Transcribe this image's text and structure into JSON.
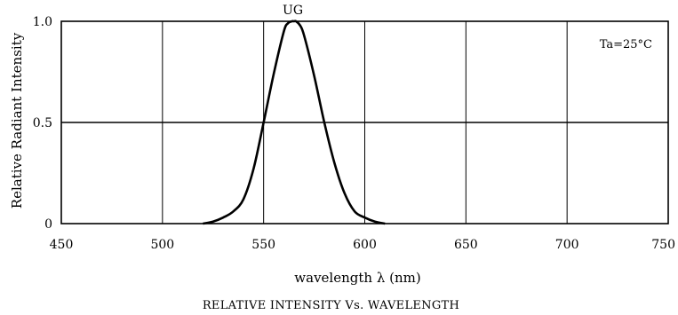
{
  "chart_data": {
    "type": "line",
    "title": "RELATIVE INTENSITY Vs. WAVELENGTH",
    "xlabel": "wavelength λ (nm)",
    "ylabel": "Relative Radiant Intensity",
    "xlim": [
      450,
      750
    ],
    "ylim": [
      0,
      1.0
    ],
    "x_ticks": [
      450,
      500,
      550,
      600,
      650,
      700,
      750
    ],
    "x_tick_labels": [
      "450",
      "500",
      "550",
      "600",
      "650",
      "700",
      "750"
    ],
    "y_ticks": [
      0,
      0.5,
      1.0
    ],
    "y_tick_labels": [
      "0",
      "0.5",
      "1.0"
    ],
    "grid": true,
    "annotation": "Ta=25°C",
    "series": [
      {
        "name": "UG",
        "x": [
          520,
          525,
          530,
          535,
          540,
          545,
          550,
          555,
          560,
          562,
          564,
          565,
          566,
          568,
          570,
          575,
          580,
          585,
          590,
          595,
          600,
          605,
          610
        ],
        "y": [
          0.0,
          0.01,
          0.03,
          0.06,
          0.12,
          0.27,
          0.5,
          0.74,
          0.95,
          0.99,
          1.0,
          1.0,
          1.0,
          0.98,
          0.93,
          0.73,
          0.5,
          0.3,
          0.15,
          0.06,
          0.03,
          0.01,
          0.0
        ]
      }
    ]
  }
}
